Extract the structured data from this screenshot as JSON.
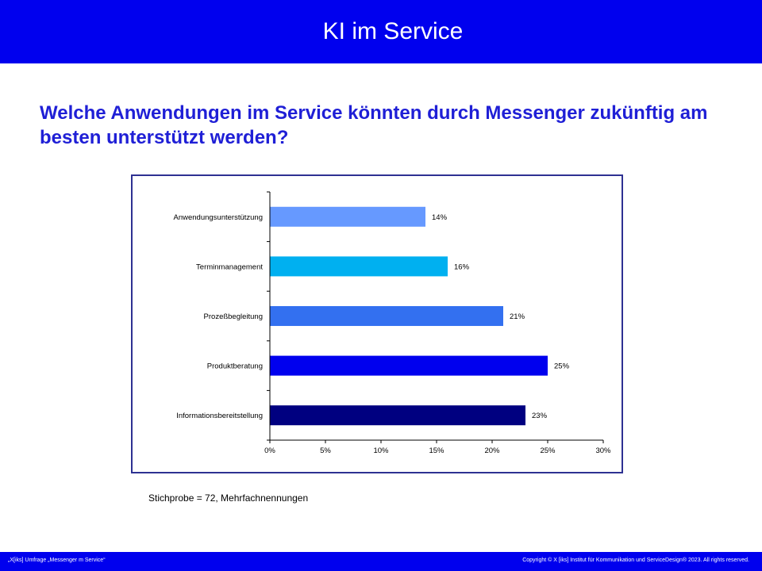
{
  "header": {
    "title": "KI im Service"
  },
  "question": "Welche Anwendungen im Service könnten durch Messenger zukünftig am besten unterstützt werden?",
  "note": "Stichprobe = 72, Mehrfachnennungen",
  "footer": {
    "left": "„X[iks] Umfrage „Messenger  m Service“",
    "right": "Copyright © X [iks] Institut für Kommunikation und ServiceDesign® 2023. All rights reserved."
  },
  "colors": {
    "header_bg": "#0000EE",
    "question_text": "#1F1FD6",
    "frame_border": "#2E3192"
  },
  "chart_data": {
    "type": "bar",
    "orientation": "horizontal",
    "categories": [
      "Anwendungsunterstützung",
      "Terminmanagement",
      "Prozeßbegleitung",
      "Produktberatung",
      "Informationsbereitstellung"
    ],
    "values": [
      14,
      16,
      21,
      25,
      23
    ],
    "value_labels": [
      "14%",
      "16%",
      "21%",
      "25%",
      "23%"
    ],
    "bar_colors": [
      "#6699FF",
      "#00B0F0",
      "#3370F0",
      "#0000EE",
      "#000080"
    ],
    "xlim": [
      0,
      30
    ],
    "x_ticks": [
      0,
      5,
      10,
      15,
      20,
      25,
      30
    ],
    "x_tick_labels": [
      "0%",
      "5%",
      "10%",
      "15%",
      "20%",
      "25%",
      "30%"
    ],
    "grid": false,
    "legend": "none"
  }
}
